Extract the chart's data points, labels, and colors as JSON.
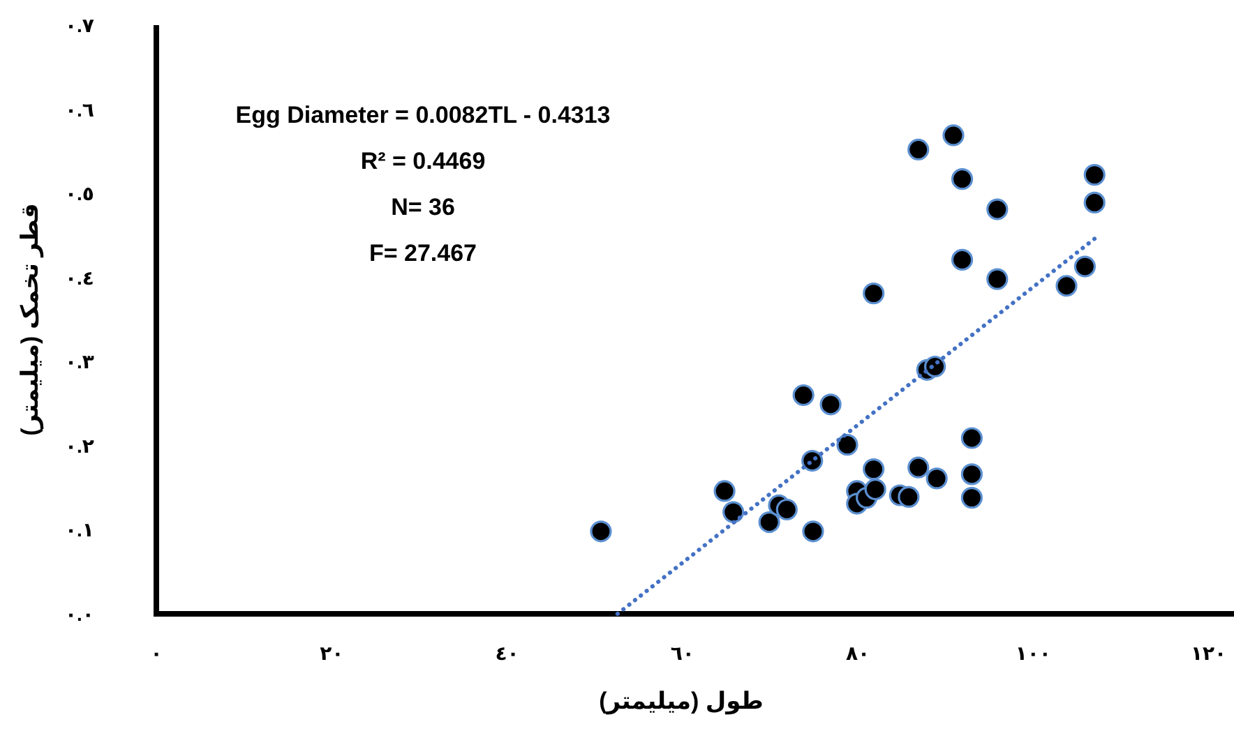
{
  "chart_data": {
    "type": "scatter",
    "xlabel": "طول (میلیمتر)",
    "ylabel": "قطر تخمک (میلیمتر)",
    "annotations": [
      "Egg Diameter = 0.0082TL - 0.4313",
      "R² = 0.4469",
      "N= 36",
      "F= 27.467"
    ],
    "xlim": [
      0,
      122.9
    ],
    "ylim": [
      0,
      0.7
    ],
    "xticks": [
      {
        "value": 0,
        "label": "٠"
      },
      {
        "value": 20,
        "label": "٢٠"
      },
      {
        "value": 40,
        "label": "٤٠"
      },
      {
        "value": 60,
        "label": "٦٠"
      },
      {
        "value": 80,
        "label": "٨٠"
      },
      {
        "value": 100,
        "label": "١٠٠"
      },
      {
        "value": 120,
        "label": "١٢٠"
      }
    ],
    "yticks": [
      {
        "value": 0,
        "label": "٠.٠"
      },
      {
        "value": 0.1,
        "label": "٠.١"
      },
      {
        "value": 0.2,
        "label": "٠.٢"
      },
      {
        "value": 0.3,
        "label": "٠.٣"
      },
      {
        "value": 0.4,
        "label": "٠.٤"
      },
      {
        "value": 0.5,
        "label": "٠.٥"
      },
      {
        "value": 0.6,
        "label": "٠.٦"
      },
      {
        "value": 0.7,
        "label": "٠.٧"
      }
    ],
    "grid": false,
    "marker": "circle",
    "series": [
      {
        "color": "#000000",
        "x": [
          50.7,
          64.8,
          65.8,
          69.9,
          71.0,
          71.9,
          73.8,
          74.8,
          74.9,
          76.9,
          78.8,
          79.9,
          79.9,
          81.0,
          81.8,
          82.0,
          81.8,
          84.8,
          85.8,
          86.9,
          86.9,
          87.9,
          88.8,
          89.0,
          90.9,
          91.9,
          91.9,
          93.0,
          93.0,
          93.0,
          95.9,
          95.9,
          103.8,
          105.9,
          107.0,
          107.0
        ],
        "values": [
          0.098,
          0.146,
          0.121,
          0.109,
          0.129,
          0.124,
          0.26,
          0.182,
          0.098,
          0.249,
          0.201,
          0.146,
          0.131,
          0.138,
          0.172,
          0.148,
          0.381,
          0.141,
          0.139,
          0.174,
          0.552,
          0.29,
          0.294,
          0.161,
          0.569,
          0.517,
          0.421,
          0.209,
          0.166,
          0.138,
          0.481,
          0.398,
          0.39,
          0.413,
          0.522,
          0.489
        ]
      },
      {
        "type": "line",
        "color": "#4472c4",
        "line_style": "dotted",
        "marker": "none",
        "x": [
          52.6,
          107.0
        ],
        "values": [
          0.0,
          0.446
        ]
      }
    ]
  }
}
